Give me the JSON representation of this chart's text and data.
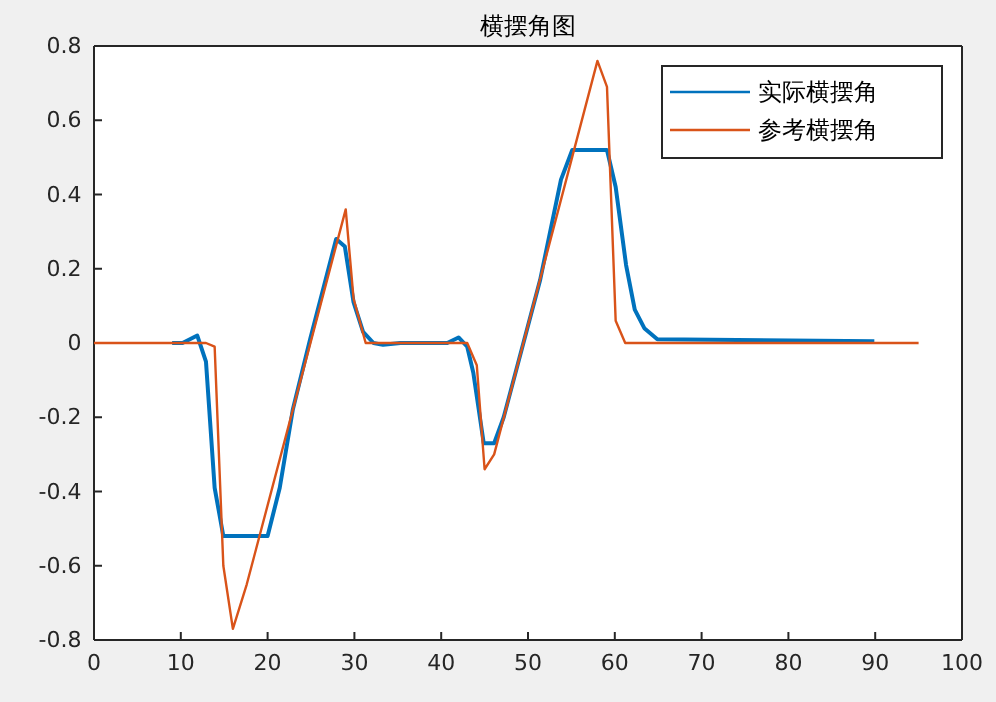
{
  "chart_data": {
    "type": "line",
    "title": "横摆角图",
    "xlim": [
      0,
      100
    ],
    "ylim": [
      -0.8,
      0.8
    ],
    "xticks": [
      0,
      10,
      20,
      30,
      40,
      50,
      60,
      70,
      80,
      90,
      100
    ],
    "yticks": [
      -0.8,
      -0.6,
      -0.4,
      -0.2,
      0,
      0.2,
      0.4,
      0.6,
      0.8
    ],
    "legend": "top right",
    "grid": false,
    "marker": "none",
    "line_style": "solid",
    "series": [
      {
        "name": "实际横摆角",
        "color": "#0072bd",
        "x": [
          9,
          10.2,
          11.9,
          12.9,
          13.9,
          14.9,
          20,
          21.4,
          22.9,
          24.9,
          27.9,
          28.9,
          29.9,
          31,
          32.2,
          33.3,
          35.3,
          40.7,
          42,
          43,
          43.7,
          44.9,
          46.1,
          47.2,
          51.4,
          53.8,
          55.1,
          59.1,
          60.1,
          61.3,
          62.3,
          63.4,
          64.9,
          89.9
        ],
        "values": [
          0,
          0,
          0.02,
          -0.05,
          -0.39,
          -0.52,
          -0.52,
          -0.39,
          -0.18,
          0.01,
          0.28,
          0.26,
          0.11,
          0.03,
          0,
          -0.005,
          0,
          0,
          0.015,
          -0.01,
          -0.08,
          -0.27,
          -0.27,
          -0.2,
          0.17,
          0.44,
          0.52,
          0.52,
          0.42,
          0.21,
          0.09,
          0.04,
          0.01,
          0.005
        ]
      },
      {
        "name": "参考横摆角",
        "color": "#d95319",
        "x": [
          0,
          12.9,
          13.9,
          14.9,
          16,
          17.6,
          29,
          29.9,
          31.3,
          43,
          44.1,
          45,
          46.1,
          58,
          59.1,
          60.1,
          61.2,
          95
        ],
        "values": [
          0,
          0,
          -0.01,
          -0.6,
          -0.77,
          -0.65,
          0.36,
          0.12,
          0,
          0,
          -0.06,
          -0.34,
          -0.3,
          0.76,
          0.69,
          0.06,
          0,
          0
        ]
      }
    ]
  }
}
